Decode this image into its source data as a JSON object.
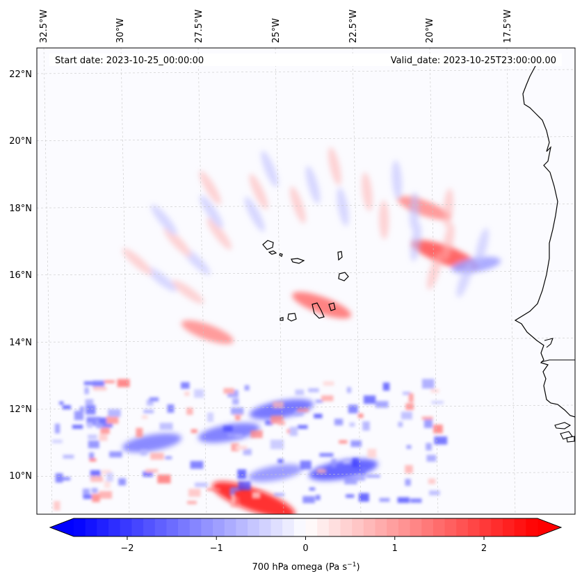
{
  "map": {
    "header": {
      "start_label": "Start date: 2023-10-25_00:00:00",
      "valid_label": "Valid_date: 2023-10-25T23:00:00.00"
    },
    "lon_ticks": [
      "32.5°W",
      "30°W",
      "27.5°W",
      "25°W",
      "22.5°W",
      "20°W",
      "17.5°W"
    ],
    "lat_ticks": [
      "22°N",
      "20°N",
      "18°N",
      "16°N",
      "14°N",
      "12°N",
      "10°N"
    ],
    "colors": {
      "negative": "#0000ff",
      "positive": "#ff0000",
      "neutral": "#ffffff",
      "coastline": "#000000",
      "gridline": "#c8c8c8"
    }
  },
  "colorbar": {
    "label_main": "700 hPa omega (Pa s",
    "label_exp": "−1",
    "label_close": ")",
    "ticks": [
      "−2",
      "−1",
      "0",
      "1",
      "2"
    ],
    "tick_values": [
      -2,
      -1,
      0,
      1,
      2
    ],
    "range": [
      -2.6,
      2.6
    ]
  },
  "chart_data": {
    "type": "heatmap",
    "variable": "700 hPa omega",
    "units": "Pa s^-1",
    "value_range": [
      -2.6,
      2.6
    ],
    "extend": "both",
    "colormap": "bwr",
    "features": [
      {
        "value": 2.5,
        "lon": -25.7,
        "lat": 9.3
      },
      {
        "value": 1.8,
        "lon": -19.5,
        "lat": 16.6
      },
      {
        "value": 1.5,
        "lon": -23.5,
        "lat": 15.1
      },
      {
        "value": 1.2,
        "lon": -27.2,
        "lat": 14.3
      },
      {
        "value": 1.2,
        "lon": -20.2,
        "lat": 18.0
      },
      {
        "value": -1.8,
        "lon": -22.8,
        "lat": 10.2
      },
      {
        "value": -1.6,
        "lon": -24.8,
        "lat": 12.0
      },
      {
        "value": -1.5,
        "lon": -26.5,
        "lat": 11.3
      },
      {
        "value": -1.4,
        "lon": -29.0,
        "lat": 11.0
      },
      {
        "value": -1.2,
        "lon": -25.0,
        "lat": 10.1
      },
      {
        "value": -1.0,
        "lon": -18.5,
        "lat": 16.3
      }
    ]
  }
}
